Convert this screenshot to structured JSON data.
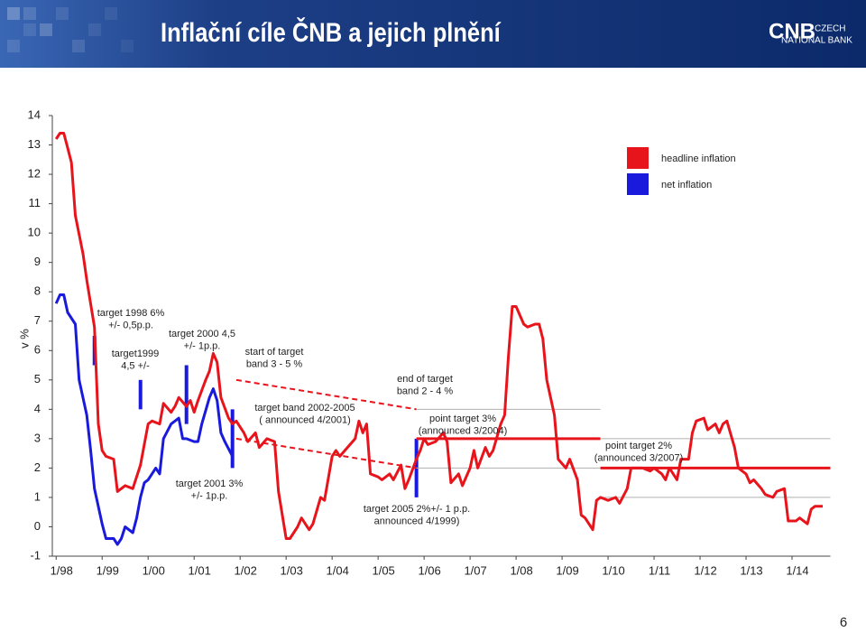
{
  "header": {
    "title": "Inflační cíle ČNB a jejich plnění",
    "logo": {
      "mark": "CNB",
      "line1": "CZECH",
      "line2": "NATIONAL BANK"
    }
  },
  "page_number": "6",
  "chart_data": {
    "type": "line",
    "ylabel": "v %",
    "ylim": [
      -1,
      14
    ],
    "yticks": [
      -1,
      0,
      1,
      2,
      3,
      4,
      5,
      6,
      7,
      8,
      9,
      10,
      11,
      12,
      13,
      14
    ],
    "xlim": [
      -1,
      202
    ],
    "xticks": [
      {
        "value": 0,
        "label": "1/98"
      },
      {
        "value": 12,
        "label": "1/99"
      },
      {
        "value": 24,
        "label": "1/00"
      },
      {
        "value": 36,
        "label": "1/01"
      },
      {
        "value": 48,
        "label": "1/02"
      },
      {
        "value": 60,
        "label": "1/03"
      },
      {
        "value": 72,
        "label": "1/04"
      },
      {
        "value": 84,
        "label": "1/05"
      },
      {
        "value": 96,
        "label": "1/06"
      },
      {
        "value": 108,
        "label": "1/07"
      },
      {
        "value": 120,
        "label": "1/08"
      },
      {
        "value": 132,
        "label": "1/09"
      },
      {
        "value": 144,
        "label": "1/10"
      },
      {
        "value": 156,
        "label": "1/11"
      },
      {
        "value": 168,
        "label": "1/12"
      },
      {
        "value": 180,
        "label": "1/13"
      },
      {
        "value": 192,
        "label": "1/14"
      }
    ],
    "series": [
      {
        "name": "headline inflation",
        "color": "#e8141c",
        "x": [
          0,
          1,
          2,
          3,
          4,
          5,
          7,
          8,
          10,
          11,
          12,
          13,
          15,
          16,
          18,
          20,
          22,
          24,
          25,
          27,
          28,
          30,
          31,
          32,
          34,
          35,
          36,
          37,
          39,
          40,
          41,
          42,
          43,
          45,
          46,
          47,
          49,
          50,
          52,
          53,
          55,
          57,
          58,
          60,
          61,
          63,
          64,
          66,
          67,
          69,
          70,
          72,
          73,
          74,
          76,
          78,
          79,
          80,
          81,
          82,
          84,
          85,
          87,
          88,
          90,
          91,
          92,
          94,
          95,
          96,
          97,
          99,
          101,
          102,
          103,
          105,
          106,
          108,
          109,
          110,
          112,
          113,
          114,
          116,
          117,
          118,
          119,
          120,
          122,
          123,
          125,
          126,
          127,
          128,
          130,
          131,
          133,
          134,
          136,
          137,
          138,
          140,
          141,
          142,
          144,
          146,
          147,
          149,
          150,
          152,
          153,
          155,
          156,
          158,
          159,
          160,
          162,
          163,
          165,
          166,
          167,
          169,
          170,
          172,
          173,
          174,
          175,
          177,
          178,
          180,
          181,
          182,
          184,
          185,
          187,
          188,
          190,
          191,
          193,
          194,
          196,
          197,
          198,
          200
        ],
        "values": [
          13.2,
          13.4,
          13.4,
          12.9,
          12.4,
          10.6,
          9.3,
          8.4,
          6.8,
          3.5,
          2.6,
          2.4,
          2.3,
          1.2,
          1.4,
          1.3,
          2.1,
          3.5,
          3.6,
          3.5,
          4.2,
          3.9,
          4.1,
          4.4,
          4.1,
          4.3,
          3.9,
          4.3,
          5.0,
          5.3,
          5.9,
          5.6,
          4.4,
          3.7,
          3.5,
          3.6,
          3.2,
          2.9,
          3.2,
          2.7,
          3.0,
          2.9,
          1.2,
          -0.4,
          -0.4,
          0,
          0.3,
          -0.1,
          0.1,
          1.0,
          0.9,
          2.4,
          2.6,
          2.4,
          2.7,
          3.0,
          3.6,
          3.2,
          3.5,
          1.8,
          1.7,
          1.6,
          1.8,
          1.6,
          2.1,
          1.3,
          1.6,
          2.3,
          2.6,
          3.0,
          2.8,
          2.9,
          3.2,
          2.9,
          1.5,
          1.8,
          1.4,
          2.0,
          2.6,
          2.0,
          2.7,
          2.4,
          2.6,
          3.5,
          3.8,
          5.8,
          7.5,
          7.5,
          6.9,
          6.8,
          6.9,
          6.9,
          6.4,
          5.0,
          3.8,
          2.3,
          2.0,
          2.3,
          1.6,
          0.4,
          0.3,
          -0.1,
          0.9,
          1.0,
          0.9,
          1.0,
          0.8,
          1.3,
          2.0,
          2.0,
          2.0,
          1.9,
          2.0,
          1.8,
          1.6,
          2.0,
          1.6,
          2.3,
          2.3,
          3.2,
          3.6,
          3.7,
          3.3,
          3.5,
          3.2,
          3.5,
          3.6,
          2.7,
          2.0,
          1.8,
          1.5,
          1.6,
          1.3,
          1.1,
          1.0,
          1.2,
          1.3,
          0.2,
          0.2,
          0.3,
          0.1,
          0.6,
          0.7,
          0.7
        ]
      },
      {
        "name": "net inflation",
        "color": "#1a1adc",
        "x": [
          0,
          1,
          2,
          3,
          5,
          6,
          8,
          9,
          10,
          12,
          13,
          15,
          16,
          17,
          18,
          20,
          21,
          22,
          23,
          24,
          26,
          27,
          28,
          30,
          31,
          32,
          33,
          34,
          36,
          37,
          38,
          40,
          41,
          42,
          43,
          44,
          46
        ],
        "values": [
          7.6,
          7.9,
          7.9,
          7.3,
          6.9,
          5.0,
          3.8,
          2.6,
          1.3,
          0.1,
          -0.4,
          -0.4,
          -0.6,
          -0.4,
          0,
          -0.2,
          0.3,
          1.0,
          1.5,
          1.6,
          2.0,
          1.8,
          3.0,
          3.5,
          3.6,
          3.7,
          3.0,
          3.0,
          2.9,
          2.9,
          3.5,
          4.4,
          4.7,
          4.3,
          3.2,
          2.9,
          2.4
        ]
      }
    ],
    "targets": [
      {
        "x": [
          10,
          10
        ],
        "y": [
          5.5,
          6.5
        ],
        "color": "#1a1adc",
        "style": "bar"
      },
      {
        "x": [
          22,
          22
        ],
        "y": [
          4,
          5
        ],
        "color": "#1a1adc",
        "style": "bar"
      },
      {
        "x": [
          34,
          34
        ],
        "y": [
          3.5,
          5.5
        ],
        "color": "#1a1adc",
        "style": "bar"
      },
      {
        "x": [
          46,
          46
        ],
        "y": [
          2,
          4
        ],
        "color": "#1a1adc",
        "style": "bar"
      },
      {
        "x": [
          94,
          94
        ],
        "y": [
          1,
          3
        ],
        "color": "#1a1adc",
        "style": "bar"
      },
      {
        "x": [
          47,
          94
        ],
        "y": [
          5,
          4
        ],
        "color": "#e8141c",
        "style": "dashed"
      },
      {
        "x": [
          47,
          94
        ],
        "y": [
          3,
          2
        ],
        "color": "#e8141c",
        "style": "dashed"
      },
      {
        "x": [
          94,
          142
        ],
        "y": [
          4,
          4
        ],
        "color": "#b0b0b0",
        "style": "thin"
      },
      {
        "x": [
          94,
          142
        ],
        "y": [
          2,
          2
        ],
        "color": "#b0b0b0",
        "style": "thin"
      },
      {
        "x": [
          142,
          202
        ],
        "y": [
          3,
          3
        ],
        "color": "#b0b0b0",
        "style": "thin"
      },
      {
        "x": [
          142,
          202
        ],
        "y": [
          1,
          1
        ],
        "color": "#b0b0b0",
        "style": "thin"
      },
      {
        "x": [
          94,
          142
        ],
        "y": [
          3,
          3
        ],
        "color": "#e8141c",
        "style": "solid"
      },
      {
        "x": [
          142,
          202
        ],
        "y": [
          2,
          2
        ],
        "color": "#e8141c",
        "style": "solid"
      }
    ],
    "annotations": [
      [
        "target 1998  6%",
        "+/- 0,5p.p."
      ],
      [
        "target1999",
        "4,5 +/-"
      ],
      [
        "target 2000 4,5",
        "+/- 1p.p."
      ],
      [
        "start of target",
        "band 3 - 5 %"
      ],
      [
        "target band 2002-2005",
        "( announced 4/2001)"
      ],
      [
        "end of target",
        "band 2 - 4 %"
      ],
      [
        "point target 3%",
        "(announced 3/2004)"
      ],
      [
        "point target 2%",
        "(announced  3/2007)"
      ],
      [
        "target 2001 3%",
        "+/- 1p.p."
      ],
      [
        "target 2005 2%+/- 1 p.p.",
        "announced 4/1999)"
      ]
    ]
  }
}
